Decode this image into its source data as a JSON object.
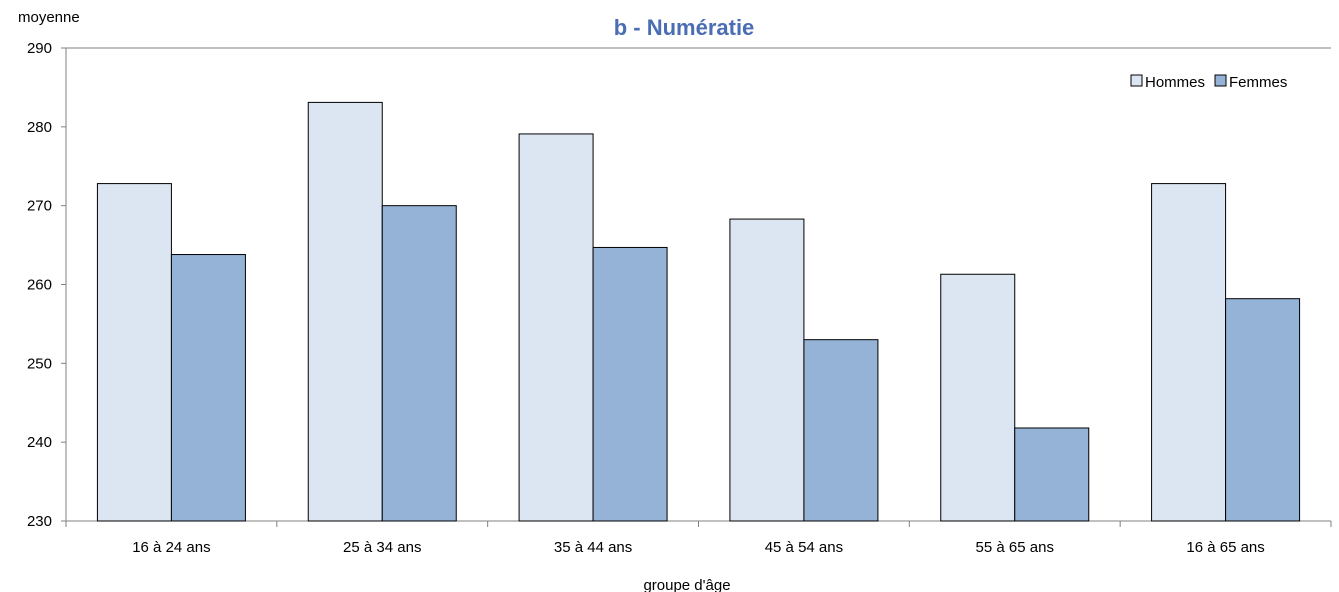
{
  "chart_data": {
    "type": "bar",
    "title": "b - Numératie",
    "ylabel": "moyenne",
    "xlabel": "groupe d'âge",
    "categories": [
      "16 à 24 ans",
      "25 à 34 ans",
      "35 à 44 ans",
      "45 à 54 ans",
      "55 à 65 ans",
      "16 à 65 ans"
    ],
    "series": [
      {
        "name": "Hommes",
        "values": [
          272.8,
          283.1,
          279.1,
          268.3,
          261.3,
          272.8
        ],
        "color": "#dce6f2"
      },
      {
        "name": "Femmes",
        "values": [
          263.8,
          270.0,
          264.7,
          253.0,
          241.8,
          258.2
        ],
        "color": "#95b3d7"
      }
    ],
    "ylim": [
      230,
      290
    ],
    "yticks": [
      230,
      240,
      250,
      260,
      270,
      280,
      290
    ],
    "grid": false,
    "legend_position": "top-right",
    "bar_stroke": "#000000"
  }
}
